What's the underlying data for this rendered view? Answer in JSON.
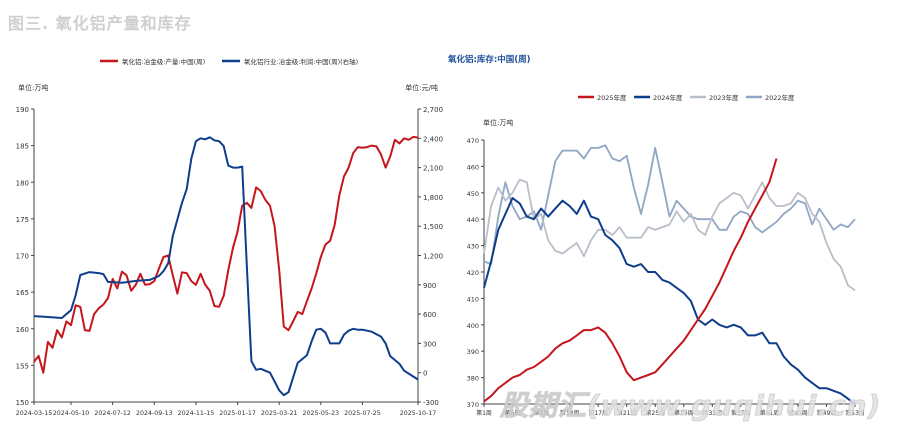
{
  "page_title": "图三. 氧化铝产量和库存",
  "watermark": "股期汇(www.guqihui.cn)",
  "chart_data": [
    {
      "type": "line",
      "legend_position": "top",
      "legend": [
        "氧化铝:冶金级:产量:中国(周)",
        "氧化铝行业:冶金级:利润:中国(周)(右轴)"
      ],
      "y_unit_left": "单位:万吨",
      "y_unit_right": "单位:元/吨",
      "ylim": [
        150,
        190
      ],
      "y_ticks": [
        150,
        155,
        160,
        165,
        170,
        175,
        180,
        185,
        190
      ],
      "y2lim": [
        -300,
        2700
      ],
      "y2_ticks": [
        -300,
        0,
        300,
        600,
        900,
        1200,
        1500,
        1800,
        2100,
        2400,
        2700
      ],
      "x_ticks": [
        "2024-03-15",
        "2024-05-10",
        "2024-07-12",
        "2024-09-13",
        "2024-11-15",
        "2025-01-17",
        "2025-03-21",
        "2025-05-23",
        "2025-07-25",
        "2025-10-17"
      ],
      "x_range": [
        "2024-03-15",
        "2025-10-17"
      ],
      "colors": [
        "#c4161c",
        "#0e3d8c"
      ],
      "series": [
        {
          "name": "氧化铝:冶金级:产量:中国(周)",
          "axis": "left",
          "color": "#c4161c",
          "x": [
            "2024-03-15",
            "2024-03-22",
            "2024-03-29",
            "2024-04-05",
            "2024-04-12",
            "2024-04-19",
            "2024-04-26",
            "2024-05-03",
            "2024-05-10",
            "2024-05-17",
            "2024-05-24",
            "2024-05-31",
            "2024-06-07",
            "2024-06-14",
            "2024-06-21",
            "2024-06-28",
            "2024-07-05",
            "2024-07-12",
            "2024-07-19",
            "2024-07-26",
            "2024-08-02",
            "2024-08-09",
            "2024-08-16",
            "2024-08-23",
            "2024-08-30",
            "2024-09-06",
            "2024-09-13",
            "2024-09-20",
            "2024-09-27",
            "2024-10-04",
            "2024-10-11",
            "2024-10-18",
            "2024-10-25",
            "2024-11-01",
            "2024-11-08",
            "2024-11-15",
            "2024-11-22",
            "2024-11-29",
            "2024-12-06",
            "2024-12-13",
            "2024-12-20",
            "2024-12-27",
            "2025-01-03",
            "2025-01-10",
            "2025-01-17",
            "2025-01-24",
            "2025-01-31",
            "2025-02-07",
            "2025-02-14",
            "2025-02-21",
            "2025-02-28",
            "2025-03-07",
            "2025-03-14",
            "2025-03-21",
            "2025-03-28",
            "2025-04-04",
            "2025-04-11",
            "2025-04-18",
            "2025-04-25",
            "2025-05-02",
            "2025-05-09",
            "2025-05-16",
            "2025-05-23",
            "2025-05-30",
            "2025-06-06",
            "2025-06-13",
            "2025-06-20",
            "2025-06-27",
            "2025-07-04",
            "2025-07-11",
            "2025-07-18",
            "2025-07-25",
            "2025-08-01",
            "2025-08-08",
            "2025-08-15",
            "2025-08-22",
            "2025-08-29",
            "2025-09-05",
            "2025-09-12",
            "2025-09-19",
            "2025-09-26",
            "2025-10-03",
            "2025-10-10",
            "2025-10-17"
          ],
          "y": [
            155.5,
            156.3,
            154.0,
            158.2,
            157.4,
            159.8,
            158.8,
            161.0,
            160.5,
            163.2,
            163.0,
            159.8,
            159.7,
            162.0,
            162.8,
            163.3,
            164.2,
            166.8,
            165.5,
            167.8,
            167.3,
            165.2,
            166.0,
            167.5,
            166.0,
            166.1,
            166.5,
            168.2,
            169.8,
            170.0,
            167.3,
            164.8,
            167.7,
            167.6,
            166.5,
            166.0,
            167.5,
            166.0,
            165.2,
            163.1,
            163.0,
            164.5,
            168.0,
            171.0,
            173.3,
            176.8,
            177.2,
            176.5,
            179.3,
            178.8,
            177.6,
            176.8,
            174.0,
            168.0,
            160.3,
            159.8,
            161.0,
            162.3,
            162.0,
            163.8,
            165.5,
            167.5,
            169.8,
            171.5,
            172.0,
            174.2,
            178.2,
            180.8,
            182.0,
            184.0,
            184.8,
            184.7,
            184.8,
            185.0,
            184.9,
            183.8,
            182.0,
            183.5,
            185.8,
            185.3,
            186.0,
            185.8,
            186.2,
            186.1
          ]
        },
        {
          "name": "氧化铝行业:冶金级:利润:中国(周)(右轴)",
          "axis": "right",
          "color": "#0e3d8c",
          "x": [
            "2024-03-15",
            "2024-04-05",
            "2024-04-26",
            "2024-05-10",
            "2024-05-17",
            "2024-05-24",
            "2024-06-07",
            "2024-06-21",
            "2024-06-28",
            "2024-07-05",
            "2024-07-26",
            "2024-08-16",
            "2024-09-06",
            "2024-09-20",
            "2024-09-27",
            "2024-10-04",
            "2024-10-11",
            "2024-10-25",
            "2024-11-01",
            "2024-11-08",
            "2024-11-15",
            "2024-11-22",
            "2024-11-29",
            "2024-12-06",
            "2024-12-13",
            "2024-12-20",
            "2024-12-27",
            "2025-01-03",
            "2025-01-10",
            "2025-01-17",
            "2025-01-24",
            "2025-01-31",
            "2025-02-07",
            "2025-02-14",
            "2025-02-21",
            "2025-03-07",
            "2025-03-21",
            "2025-03-28",
            "2025-04-04",
            "2025-04-11",
            "2025-04-18",
            "2025-05-02",
            "2025-05-09",
            "2025-05-16",
            "2025-05-23",
            "2025-05-30",
            "2025-06-06",
            "2025-06-20",
            "2025-06-27",
            "2025-07-04",
            "2025-07-11",
            "2025-07-18",
            "2025-07-25",
            "2025-08-08",
            "2025-08-22",
            "2025-08-29",
            "2025-09-05",
            "2025-09-19",
            "2025-09-26",
            "2025-10-10",
            "2025-10-17"
          ],
          "y": [
            580,
            570,
            560,
            640,
            790,
            1000,
            1030,
            1020,
            1010,
            930,
            920,
            940,
            950,
            990,
            1040,
            1120,
            1400,
            1740,
            1880,
            2190,
            2370,
            2400,
            2390,
            2410,
            2380,
            2370,
            2320,
            2120,
            2100,
            2100,
            2110,
            1100,
            120,
            30,
            40,
            0,
            -180,
            -230,
            -200,
            -50,
            100,
            180,
            320,
            440,
            450,
            410,
            300,
            300,
            390,
            430,
            450,
            440,
            440,
            420,
            370,
            300,
            170,
            90,
            20,
            -40,
            -70
          ]
        }
      ]
    },
    {
      "type": "line",
      "title": "氧化铝:库存:中国(周)",
      "legend_position": "top",
      "y_unit_left": "单位:万吨",
      "ylim": [
        370,
        470
      ],
      "y_ticks": [
        370,
        380,
        390,
        400,
        410,
        420,
        430,
        440,
        450,
        460,
        470
      ],
      "x_ticks": [
        "第1周",
        "第5周",
        "第9周",
        "第13周",
        "第17周",
        "第21周",
        "第25周",
        "第29周",
        "第33周",
        "第37周",
        "第41周",
        "第45周",
        "第49周",
        "第53周"
      ],
      "x_week_range": [
        1,
        53
      ],
      "series": [
        {
          "name": "2025年度",
          "color": "#c4161c",
          "x": [
            1,
            2,
            3,
            4,
            5,
            6,
            7,
            8,
            9,
            10,
            11,
            12,
            13,
            14,
            15,
            16,
            17,
            18,
            19,
            20,
            21,
            22,
            23,
            24,
            25,
            26,
            27,
            28,
            29,
            30,
            31,
            32,
            33,
            34,
            35,
            36,
            37,
            38,
            39,
            40,
            41,
            42
          ],
          "y": [
            371,
            373,
            376,
            378,
            380,
            381,
            383,
            384,
            386,
            388,
            391,
            393,
            394,
            396,
            398,
            398,
            399,
            397,
            393,
            388,
            382,
            379,
            380,
            381,
            382,
            385,
            388,
            391,
            394,
            398,
            402,
            406,
            411,
            416,
            422,
            428,
            433,
            439,
            444,
            449,
            454,
            463
          ]
        },
        {
          "name": "2024年度",
          "color": "#0e3d8c",
          "x": [
            1,
            2,
            3,
            4,
            5,
            6,
            7,
            8,
            9,
            10,
            11,
            12,
            13,
            14,
            15,
            16,
            17,
            18,
            19,
            20,
            21,
            22,
            23,
            24,
            25,
            26,
            27,
            28,
            29,
            30,
            31,
            32,
            33,
            34,
            35,
            36,
            37,
            38,
            39,
            40,
            41,
            42,
            43,
            44,
            45,
            46,
            47,
            48,
            49,
            50,
            51,
            52,
            53
          ],
          "y": [
            414,
            424,
            436,
            442,
            448,
            446,
            441,
            440,
            444,
            441,
            444,
            447,
            445,
            442,
            447,
            441,
            440,
            434,
            432,
            429,
            423,
            422,
            423,
            420,
            420,
            417,
            416,
            414,
            412,
            409,
            402,
            400,
            402,
            400,
            399,
            400,
            399,
            396,
            396,
            397,
            393,
            393,
            388,
            385,
            383,
            380,
            378,
            376,
            376,
            375,
            374,
            372,
            370
          ]
        },
        {
          "name": "2023年度",
          "color": "#b9bfc9",
          "x": [
            1,
            2,
            3,
            4,
            5,
            6,
            7,
            8,
            9,
            10,
            11,
            12,
            13,
            14,
            15,
            16,
            17,
            18,
            19,
            20,
            21,
            22,
            23,
            24,
            25,
            26,
            27,
            28,
            29,
            30,
            31,
            32,
            33,
            34,
            35,
            36,
            37,
            38,
            39,
            40,
            41,
            42,
            43,
            44,
            45,
            46,
            47,
            48,
            49,
            50,
            51,
            52,
            53
          ],
          "y": [
            427,
            445,
            452,
            447,
            450,
            455,
            454,
            440,
            442,
            432,
            428,
            427,
            429,
            431,
            426,
            432,
            436,
            436,
            434,
            437,
            433,
            433,
            433,
            437,
            436,
            437,
            438,
            443,
            439,
            442,
            436,
            434,
            441,
            446,
            448,
            450,
            449,
            444,
            449,
            454,
            448,
            445,
            445,
            446,
            450,
            448,
            442,
            439,
            431,
            425,
            422,
            415,
            413
          ]
        },
        {
          "name": "2022年度",
          "color": "#8fa6c4",
          "x": [
            1,
            2,
            3,
            4,
            5,
            6,
            7,
            8,
            9,
            10,
            11,
            12,
            13,
            14,
            15,
            16,
            17,
            18,
            19,
            20,
            21,
            22,
            23,
            24,
            25,
            26,
            27,
            28,
            29,
            30,
            31,
            32,
            33,
            34,
            35,
            36,
            37,
            38,
            39,
            40,
            41,
            42,
            43,
            44,
            45,
            46,
            47,
            48,
            49,
            50,
            51,
            52,
            53
          ],
          "y": [
            424,
            423,
            441,
            454,
            445,
            440,
            441,
            443,
            436,
            449,
            462,
            466,
            466,
            466,
            463,
            467,
            467,
            468,
            463,
            462,
            464,
            452,
            442,
            453,
            467,
            454,
            441,
            447,
            444,
            441,
            440,
            440,
            440,
            436,
            436,
            441,
            443,
            442,
            437,
            435,
            437,
            439,
            442,
            444,
            447,
            446,
            438,
            444,
            440,
            436,
            438,
            437,
            440
          ]
        }
      ]
    }
  ]
}
